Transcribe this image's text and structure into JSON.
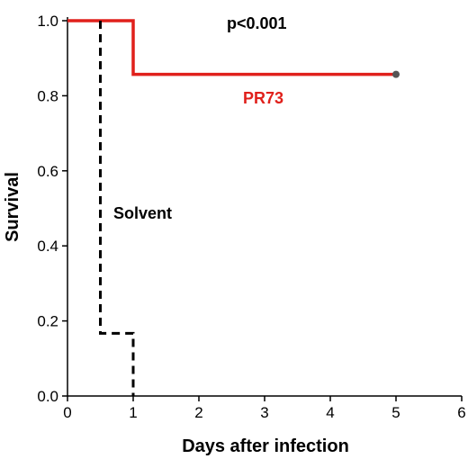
{
  "chart_data": {
    "type": "line",
    "subtype": "kaplan-meier step",
    "title": "",
    "xlabel": "Days after infection",
    "ylabel": "Survival",
    "xlim": [
      0,
      6
    ],
    "ylim": [
      0,
      1.0
    ],
    "x_ticks": [
      "0",
      "1",
      "2",
      "3",
      "4",
      "5",
      "6"
    ],
    "y_ticks": [
      "0.0",
      "0.2",
      "0.4",
      "0.6",
      "0.8",
      "1.0"
    ],
    "grid": false,
    "annotations": {
      "p_value": "p<0.001"
    },
    "series": [
      {
        "name": "PR73",
        "color": "#e0201b",
        "style": "solid",
        "x": [
          0,
          1,
          1,
          5
        ],
        "y": [
          1.0,
          1.0,
          0.857,
          0.857
        ],
        "censor_marker": {
          "x": 5,
          "y": 0.857,
          "color": "#555555"
        }
      },
      {
        "name": "Solvent",
        "color": "#000000",
        "style": "dashed",
        "x": [
          0.5,
          0.5,
          1,
          1
        ],
        "y": [
          1.0,
          0.167,
          0.167,
          0.0
        ]
      }
    ]
  }
}
